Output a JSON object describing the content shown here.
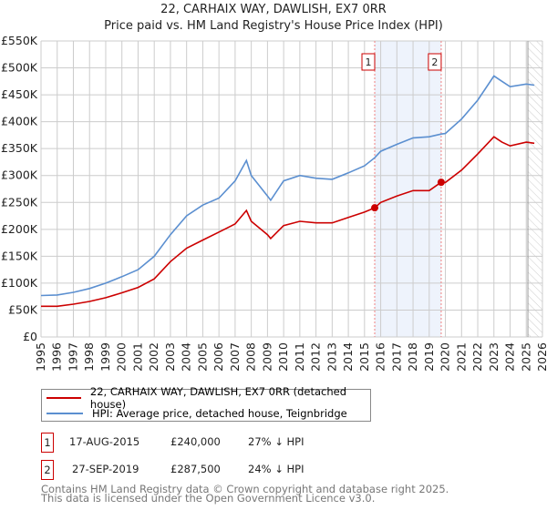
{
  "title": "22, CARHAIX WAY, DAWLISH, EX7 0RR",
  "subtitle": "Price paid vs. HM Land Registry's House Price Index (HPI)",
  "chart_data": {
    "type": "line",
    "title": "22, CARHAIX WAY, DAWLISH, EX7 0RR",
    "subtitle": "Price paid vs. HM Land Registry's House Price Index (HPI)",
    "xlim": [
      1995,
      2026
    ],
    "ylim": [
      0,
      550000
    ],
    "x_ticks": [
      "1995",
      "1996",
      "1997",
      "1998",
      "1999",
      "2000",
      "2001",
      "2002",
      "2003",
      "2004",
      "2005",
      "2006",
      "2007",
      "2008",
      "2009",
      "2010",
      "2011",
      "2012",
      "2013",
      "2014",
      "2015",
      "2016",
      "2017",
      "2018",
      "2019",
      "2020",
      "2021",
      "2022",
      "2023",
      "2024",
      "2025",
      "2026"
    ],
    "y_ticks": [
      {
        "value": 0,
        "label": "£0"
      },
      {
        "value": 50000,
        "label": "£50K"
      },
      {
        "value": 100000,
        "label": "£100K"
      },
      {
        "value": 150000,
        "label": "£150K"
      },
      {
        "value": 200000,
        "label": "£200K"
      },
      {
        "value": 250000,
        "label": "£250K"
      },
      {
        "value": 300000,
        "label": "£300K"
      },
      {
        "value": 350000,
        "label": "£350K"
      },
      {
        "value": 400000,
        "label": "£400K"
      },
      {
        "value": 450000,
        "label": "£450K"
      },
      {
        "value": 500000,
        "label": "£500K"
      },
      {
        "value": 550000,
        "label": "£550K"
      }
    ],
    "grid": true,
    "series": [
      {
        "name": "22, CARHAIX WAY, DAWLISH, EX7 0RR (detached house)",
        "color": "#cc0000",
        "x": [
          1995,
          1996,
          1997,
          1998,
          1999,
          2000,
          2001,
          2002,
          2003,
          2004,
          2005,
          2006,
          2007,
          2007.7,
          2008,
          2009,
          2009.2,
          2010,
          2011,
          2012,
          2013,
          2014,
          2015,
          2015.63,
          2016,
          2017,
          2018,
          2019,
          2019.74,
          2020,
          2021,
          2022,
          2023,
          2023.5,
          2024,
          2025,
          2025.5
        ],
        "y": [
          57000,
          57000,
          61000,
          66000,
          73000,
          82000,
          92000,
          108000,
          140000,
          165000,
          180000,
          195000,
          210000,
          235000,
          215000,
          190000,
          183000,
          207000,
          215000,
          212000,
          212000,
          222000,
          232000,
          240000,
          250000,
          262000,
          272000,
          272000,
          287500,
          287000,
          310000,
          340000,
          372000,
          362000,
          355000,
          362000,
          360000
        ]
      },
      {
        "name": "HPI: Average price, detached house, Teignbridge",
        "color": "#5b8fd0",
        "x": [
          1995,
          1996,
          1997,
          1998,
          1999,
          2000,
          2001,
          2002,
          2003,
          2004,
          2005,
          2006,
          2007,
          2007.7,
          2008,
          2009,
          2009.2,
          2010,
          2011,
          2012,
          2013,
          2014,
          2015,
          2015.63,
          2016,
          2017,
          2018,
          2019,
          2019.74,
          2020,
          2021,
          2022,
          2023,
          2023.5,
          2024,
          2025,
          2025.5
        ],
        "y": [
          77000,
          78000,
          83000,
          90000,
          100000,
          112000,
          125000,
          150000,
          190000,
          225000,
          245000,
          258000,
          290000,
          328000,
          300000,
          262000,
          254000,
          290000,
          300000,
          295000,
          293000,
          305000,
          318000,
          333000,
          345000,
          358000,
          370000,
          372000,
          377000,
          378000,
          405000,
          440000,
          485000,
          475000,
          465000,
          470000,
          468000
        ]
      }
    ],
    "annotations": [
      {
        "label": "1",
        "x": 2015.63,
        "y": 240000
      },
      {
        "label": "2",
        "x": 2019.74,
        "y": 287500
      }
    ],
    "shaded_range": [
      2015.63,
      2019.74
    ],
    "forecast_hatch_from": 2025.1,
    "legend_placement": "bottom"
  },
  "legend": [
    {
      "label": "22, CARHAIX WAY, DAWLISH, EX7 0RR (detached house)",
      "color": "#cc0000"
    },
    {
      "label": "HPI: Average price, detached house, Teignbridge",
      "color": "#5b8fd0"
    }
  ],
  "transactions": [
    {
      "num": "1",
      "date": "17-AUG-2015",
      "price": "£240,000",
      "hpi": "27% ↓ HPI"
    },
    {
      "num": "2",
      "date": "27-SEP-2019",
      "price": "£287,500",
      "hpi": "24% ↓ HPI"
    }
  ],
  "footer": [
    "Contains HM Land Registry data © Crown copyright and database right 2025.",
    "This data is licensed under the Open Government Licence v3.0."
  ]
}
